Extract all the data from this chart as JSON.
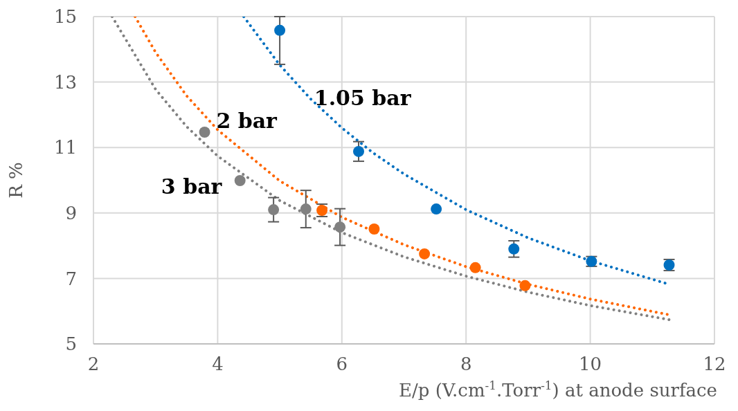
{
  "chart_data": {
    "type": "scatter",
    "xlabel": "E/p (V.cm$^{-1}$.Torr$^{-1}$) at anode surface",
    "ylabel": "R %",
    "xlim": [
      2,
      12
    ],
    "xticks": [
      2,
      4,
      6,
      8,
      10,
      12
    ],
    "ylim": [
      5,
      15
    ],
    "yticks": [
      5,
      7,
      9,
      11,
      13,
      15
    ],
    "grid": true,
    "legend": false,
    "marker": "circle",
    "series": [
      {
        "name": "1.05 bar",
        "type": "line",
        "color": "#0070c0",
        "line_style": "dotted",
        "marker": "none",
        "x": [
          4.42,
          5,
          5.5,
          6,
          6.5,
          7,
          8,
          9,
          10,
          11.27
        ],
        "values": [
          15,
          13.52,
          12.48,
          11.6,
          10.84,
          10.19,
          9.1,
          8.24,
          7.54,
          6.82
        ]
      },
      {
        "name": "2 bar",
        "type": "line",
        "color": "#ff6600",
        "line_style": "dotted",
        "marker": "none",
        "x": [
          2.67,
          3,
          3.5,
          4,
          5,
          6,
          7,
          8,
          9,
          10,
          11.27
        ],
        "values": [
          15,
          13.91,
          12.58,
          11.54,
          9.98,
          8.87,
          8.03,
          7.36,
          6.82,
          6.37,
          5.89
        ]
      },
      {
        "name": "3 bar",
        "type": "line",
        "color": "#808080",
        "line_style": "dotted",
        "marker": "none",
        "x": [
          2.3,
          3,
          3.5,
          4,
          5,
          6,
          7,
          8,
          9,
          10,
          11.27
        ],
        "values": [
          15,
          12.78,
          11.64,
          10.74,
          9.38,
          8.4,
          7.66,
          7.07,
          6.58,
          6.17,
          5.74
        ]
      },
      {
        "color": "#0070c0",
        "x": [
          5.0,
          6.27,
          7.52,
          8.77,
          10.02,
          11.27
        ],
        "values": [
          14.58,
          10.88,
          9.12,
          7.9,
          7.52,
          7.41
        ],
        "errors": [
          [
            13.54,
            15
          ],
          0.3,
          null,
          0.25,
          0.15,
          0.17
        ]
      },
      {
        "color": "#ff6600",
        "x": [
          5.68,
          6.52,
          7.33,
          8.15,
          8.95
        ],
        "values": [
          9.08,
          8.51,
          7.75,
          7.33,
          6.78
        ],
        "errors": [
          0.19,
          null,
          null,
          null,
          null
        ]
      },
      {
        "color": "#808080",
        "x": [
          3.79,
          4.36,
          4.9,
          5.42,
          5.97
        ],
        "values": [
          11.47,
          9.99,
          9.1,
          9.12,
          8.57
        ],
        "errors": [
          null,
          null,
          0.37,
          0.57,
          0.56
        ]
      }
    ]
  }
}
